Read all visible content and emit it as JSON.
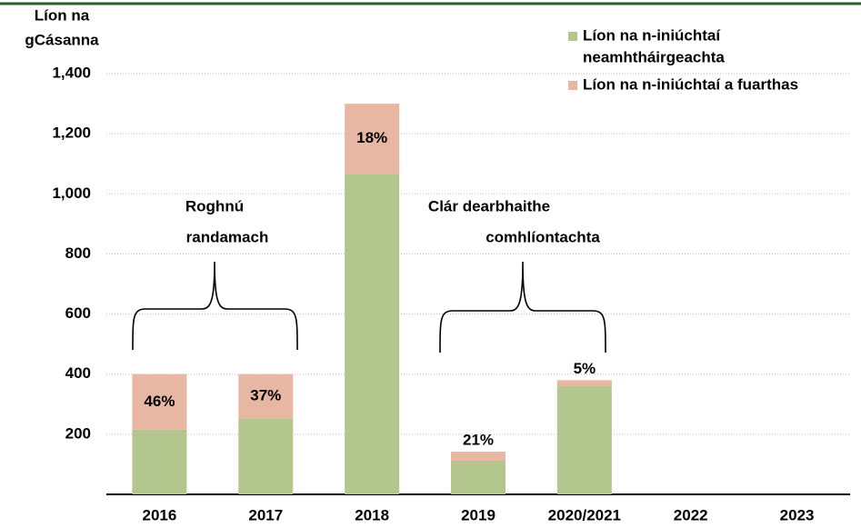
{
  "chart_data": {
    "type": "stacked_bar",
    "y_label": [
      "Líon na",
      "gCásanna"
    ],
    "categories": [
      "2016",
      "2017",
      "2018",
      "2019",
      "2020/2021",
      "2022",
      "2023"
    ],
    "series": [
      {
        "name": [
          "Líon na n-iniúchtaí",
          "neamhtháirgeachta"
        ],
        "color": "#b3c68e",
        "values": [
          215,
          252,
          1066,
          112,
          361,
          null,
          null
        ]
      },
      {
        "name": [
          "Líon na n-iniúchtaí a fuarthas"
        ],
        "color": "#e8b7a3",
        "values": [
          185,
          148,
          234,
          30,
          19,
          null,
          null
        ]
      }
    ],
    "share_labels": [
      "46%",
      "37%",
      "18%",
      "21%",
      "5%",
      null,
      null
    ],
    "annotations": [
      {
        "lines": [
          "Roghnú",
          "randamach"
        ]
      },
      {
        "lines": [
          "Clár dearbhaithe",
          "comhlíontachta"
        ]
      }
    ],
    "ylim": [
      0,
      1400
    ],
    "yticks": [
      {
        "value": 200,
        "label": "200"
      },
      {
        "value": 400,
        "label": "400"
      },
      {
        "value": 600,
        "label": "600"
      },
      {
        "value": 800,
        "label": "800"
      },
      {
        "value": 1000,
        "label": "1,000"
      },
      {
        "value": 1200,
        "label": "1,200"
      },
      {
        "value": 1400,
        "label": "1,400"
      }
    ],
    "grid": true,
    "legend": "top-right"
  }
}
